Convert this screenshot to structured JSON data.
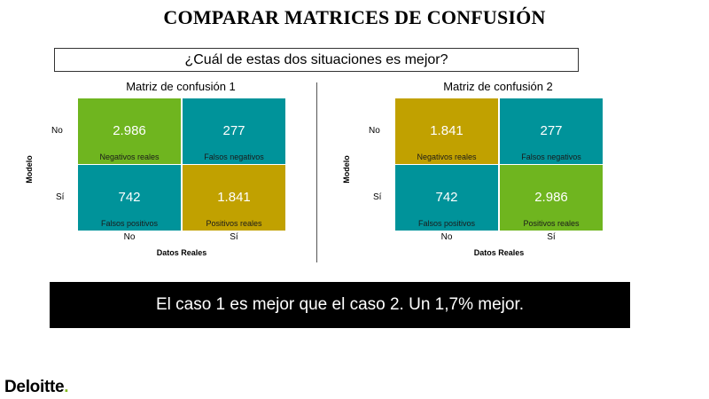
{
  "title": "COMPARAR MATRICES DE CONFUSIÓN",
  "question": "¿Cuál de estas dos situaciones es mejor?",
  "matrices": [
    {
      "title": "Matriz de confusión 1",
      "y_axis": "Modelo",
      "x_axis": "Datos Reales",
      "rows": [
        "No",
        "Sí"
      ],
      "cols": [
        "No",
        "Sí"
      ],
      "cells": [
        {
          "value": "2.986",
          "label": "Negativos reales",
          "color": "#6fb51f"
        },
        {
          "value": "277",
          "label": "Falsos negativos",
          "color": "#00939a"
        },
        {
          "value": "742",
          "label": "Falsos positivos",
          "color": "#00939a"
        },
        {
          "value": "1.841",
          "label": "Positivos reales",
          "color": "#c1a100"
        }
      ]
    },
    {
      "title": "Matriz de confusión 2",
      "y_axis": "Modelo",
      "x_axis": "Datos Reales",
      "rows": [
        "No",
        "Sí"
      ],
      "cols": [
        "No",
        "Sí"
      ],
      "cells": [
        {
          "value": "1.841",
          "label": "Negativos reales",
          "color": "#c1a100"
        },
        {
          "value": "277",
          "label": "Falsos negativos",
          "color": "#00939a"
        },
        {
          "value": "742",
          "label": "Falsos positivos",
          "color": "#00939a"
        },
        {
          "value": "2.986",
          "label": "Positivos reales",
          "color": "#6fb51f"
        }
      ]
    }
  ],
  "conclusion": "El caso 1 es mejor que el caso 2. Un 1,7% mejor.",
  "logo": {
    "text": "Deloitte",
    "dot": ".",
    "dot_color": "#86bc25"
  }
}
